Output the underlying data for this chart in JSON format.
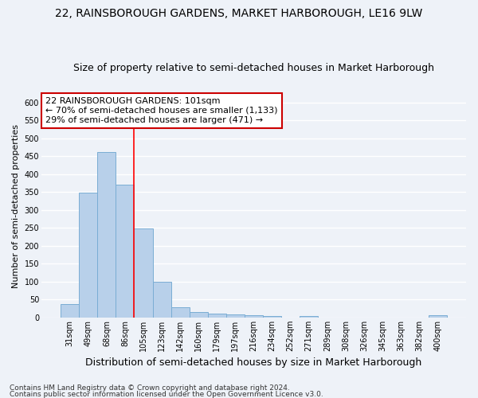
{
  "title": "22, RAINSBOROUGH GARDENS, MARKET HARBOROUGH, LE16 9LW",
  "subtitle": "Size of property relative to semi-detached houses in Market Harborough",
  "xlabel": "Distribution of semi-detached houses by size in Market Harborough",
  "ylabel": "Number of semi-detached properties",
  "categories": [
    "31sqm",
    "49sqm",
    "68sqm",
    "86sqm",
    "105sqm",
    "123sqm",
    "142sqm",
    "160sqm",
    "179sqm",
    "197sqm",
    "216sqm",
    "234sqm",
    "252sqm",
    "271sqm",
    "289sqm",
    "308sqm",
    "326sqm",
    "345sqm",
    "363sqm",
    "382sqm",
    "400sqm"
  ],
  "values": [
    37,
    348,
    462,
    370,
    248,
    100,
    29,
    15,
    11,
    9,
    7,
    5,
    0,
    5,
    0,
    0,
    0,
    0,
    0,
    0,
    6
  ],
  "bar_color": "#b8d0ea",
  "bar_edgecolor": "#7aadd4",
  "redline_x": 3.5,
  "annotation_text": "22 RAINSBOROUGH GARDENS: 101sqm\n← 70% of semi-detached houses are smaller (1,133)\n29% of semi-detached houses are larger (471) →",
  "annotation_box_color": "#ffffff",
  "annotation_box_edgecolor": "#cc0000",
  "ylim": [
    0,
    620
  ],
  "yticks": [
    0,
    50,
    100,
    150,
    200,
    250,
    300,
    350,
    400,
    450,
    500,
    550,
    600
  ],
  "footer_line1": "Contains HM Land Registry data © Crown copyright and database right 2024.",
  "footer_line2": "Contains public sector information licensed under the Open Government Licence v3.0.",
  "background_color": "#eef2f8",
  "plot_bg_color": "#eef2f8",
  "grid_color": "#ffffff",
  "title_fontsize": 10,
  "subtitle_fontsize": 9,
  "xlabel_fontsize": 9,
  "ylabel_fontsize": 8,
  "tick_fontsize": 7,
  "annotation_fontsize": 8,
  "footer_fontsize": 6.5
}
